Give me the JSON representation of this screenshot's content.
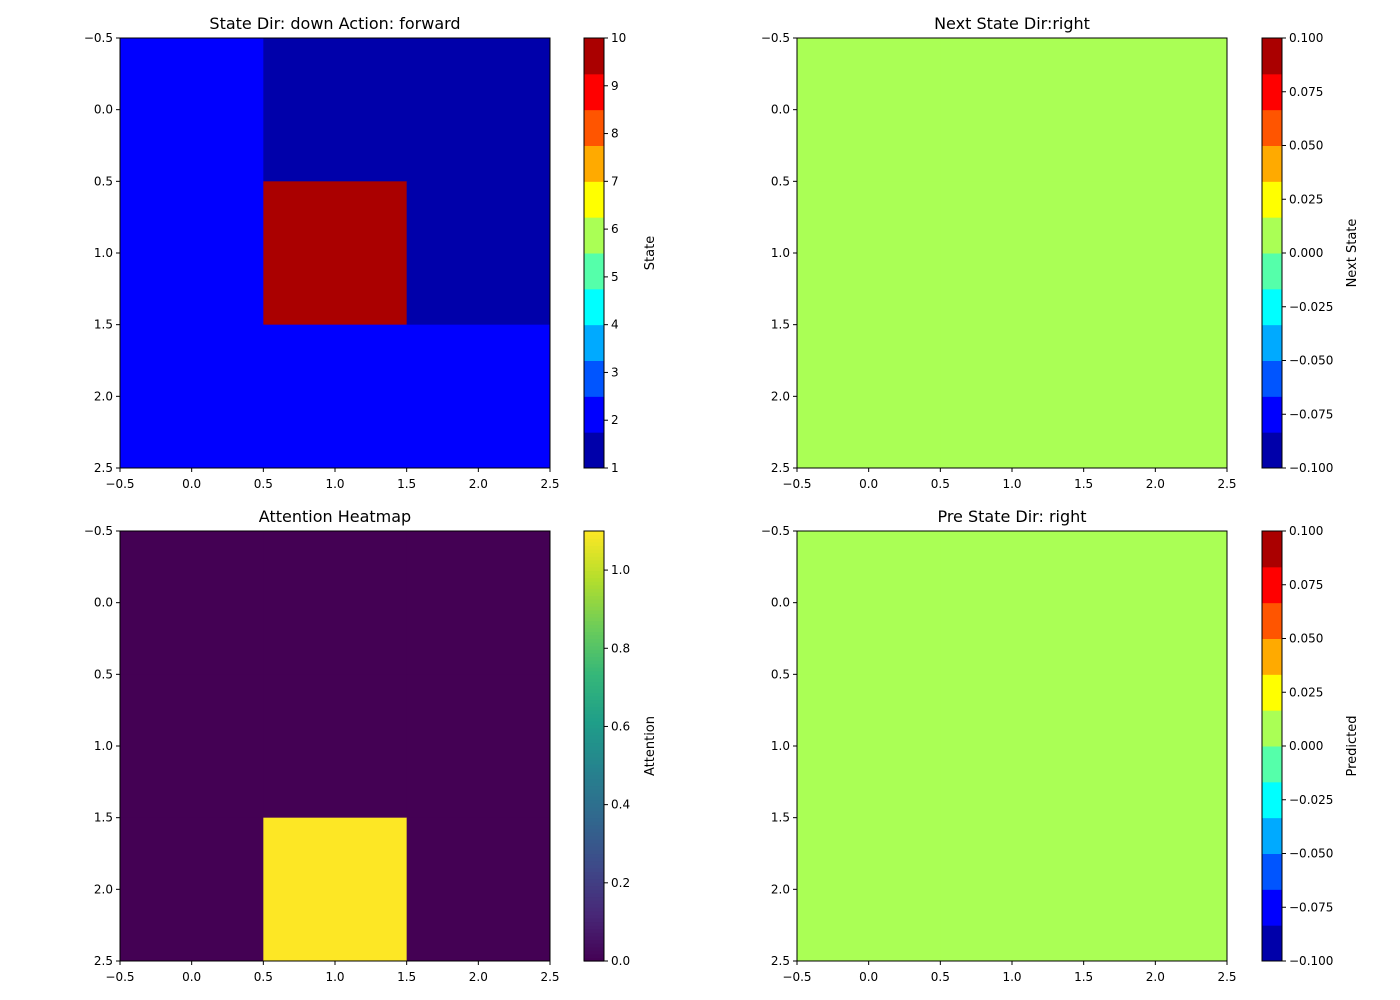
{
  "chart_data": [
    {
      "type": "heatmap",
      "title": "State  Dir: down  Action: forward",
      "colormap": "jet",
      "discrete_levels": 12,
      "xlim": [
        -0.5,
        2.5
      ],
      "ylim": [
        2.5,
        -0.5
      ],
      "x_ticks": [
        "−0.5",
        "0.0",
        "0.5",
        "1.0",
        "1.5",
        "2.0",
        "2.5"
      ],
      "y_ticks": [
        "−0.5",
        "0.0",
        "0.5",
        "1.0",
        "1.5",
        "2.0",
        "2.5"
      ],
      "values": [
        [
          2,
          1,
          1
        ],
        [
          2,
          10,
          1
        ],
        [
          2,
          2,
          2
        ]
      ],
      "colorbar": {
        "label": "State",
        "range": [
          1,
          10
        ],
        "ticks": [
          1,
          2,
          3,
          4,
          5,
          6,
          7,
          8,
          9,
          10
        ],
        "tick_labels": [
          "1",
          "2",
          "3",
          "4",
          "5",
          "6",
          "7",
          "8",
          "9",
          "10"
        ]
      }
    },
    {
      "type": "heatmap",
      "title": "Next State  Dir:right",
      "colormap": "jet",
      "discrete_levels": 12,
      "xlim": [
        -0.5,
        2.5
      ],
      "ylim": [
        2.5,
        -0.5
      ],
      "x_ticks": [
        "−0.5",
        "0.0",
        "0.5",
        "1.0",
        "1.5",
        "2.0",
        "2.5"
      ],
      "y_ticks": [
        "−0.5",
        "0.0",
        "0.5",
        "1.0",
        "1.5",
        "2.0",
        "2.5"
      ],
      "values": [
        [
          0,
          0,
          0
        ],
        [
          0,
          0,
          0
        ],
        [
          0,
          0,
          0
        ]
      ],
      "colorbar": {
        "label": "Next State",
        "range": [
          -0.1,
          0.1
        ],
        "ticks": [
          -0.1,
          -0.075,
          -0.05,
          -0.025,
          0,
          0.025,
          0.05,
          0.075,
          0.1
        ],
        "tick_labels": [
          "−0.100",
          "−0.075",
          "−0.050",
          "−0.025",
          "0.000",
          "0.025",
          "0.050",
          "0.075",
          "0.100"
        ]
      }
    },
    {
      "type": "heatmap",
      "title": "Attention Heatmap",
      "colormap": "viridis",
      "xlim": [
        -0.5,
        2.5
      ],
      "ylim": [
        2.5,
        -0.5
      ],
      "x_ticks": [
        "−0.5",
        "0.0",
        "0.5",
        "1.0",
        "1.5",
        "2.0",
        "2.5"
      ],
      "y_ticks": [
        "−0.5",
        "0.0",
        "0.5",
        "1.0",
        "1.5",
        "2.0",
        "2.5"
      ],
      "values": [
        [
          0,
          0,
          0
        ],
        [
          0,
          0,
          0
        ],
        [
          0,
          1.1,
          0
        ]
      ],
      "colorbar": {
        "label": "Attention",
        "range": [
          0,
          1.1
        ],
        "ticks": [
          0,
          0.2,
          0.4,
          0.6,
          0.8,
          1.0
        ],
        "tick_labels": [
          "0.0",
          "0.2",
          "0.4",
          "0.6",
          "0.8",
          "1.0"
        ]
      }
    },
    {
      "type": "heatmap",
      "title": "Pre State  Dir: right",
      "colormap": "jet",
      "discrete_levels": 12,
      "xlim": [
        -0.5,
        2.5
      ],
      "ylim": [
        2.5,
        -0.5
      ],
      "x_ticks": [
        "−0.5",
        "0.0",
        "0.5",
        "1.0",
        "1.5",
        "2.0",
        "2.5"
      ],
      "y_ticks": [
        "−0.5",
        "0.0",
        "0.5",
        "1.0",
        "1.5",
        "2.0",
        "2.5"
      ],
      "values": [
        [
          0,
          0,
          0
        ],
        [
          0,
          0,
          0
        ],
        [
          0,
          0,
          0
        ]
      ],
      "colorbar": {
        "label": "Predicted",
        "range": [
          -0.1,
          0.1
        ],
        "ticks": [
          -0.1,
          -0.075,
          -0.05,
          -0.025,
          0,
          0.025,
          0.05,
          0.075,
          0.1
        ],
        "tick_labels": [
          "−0.100",
          "−0.075",
          "−0.050",
          "−0.025",
          "0.000",
          "0.025",
          "0.050",
          "0.075",
          "0.100"
        ]
      }
    }
  ]
}
